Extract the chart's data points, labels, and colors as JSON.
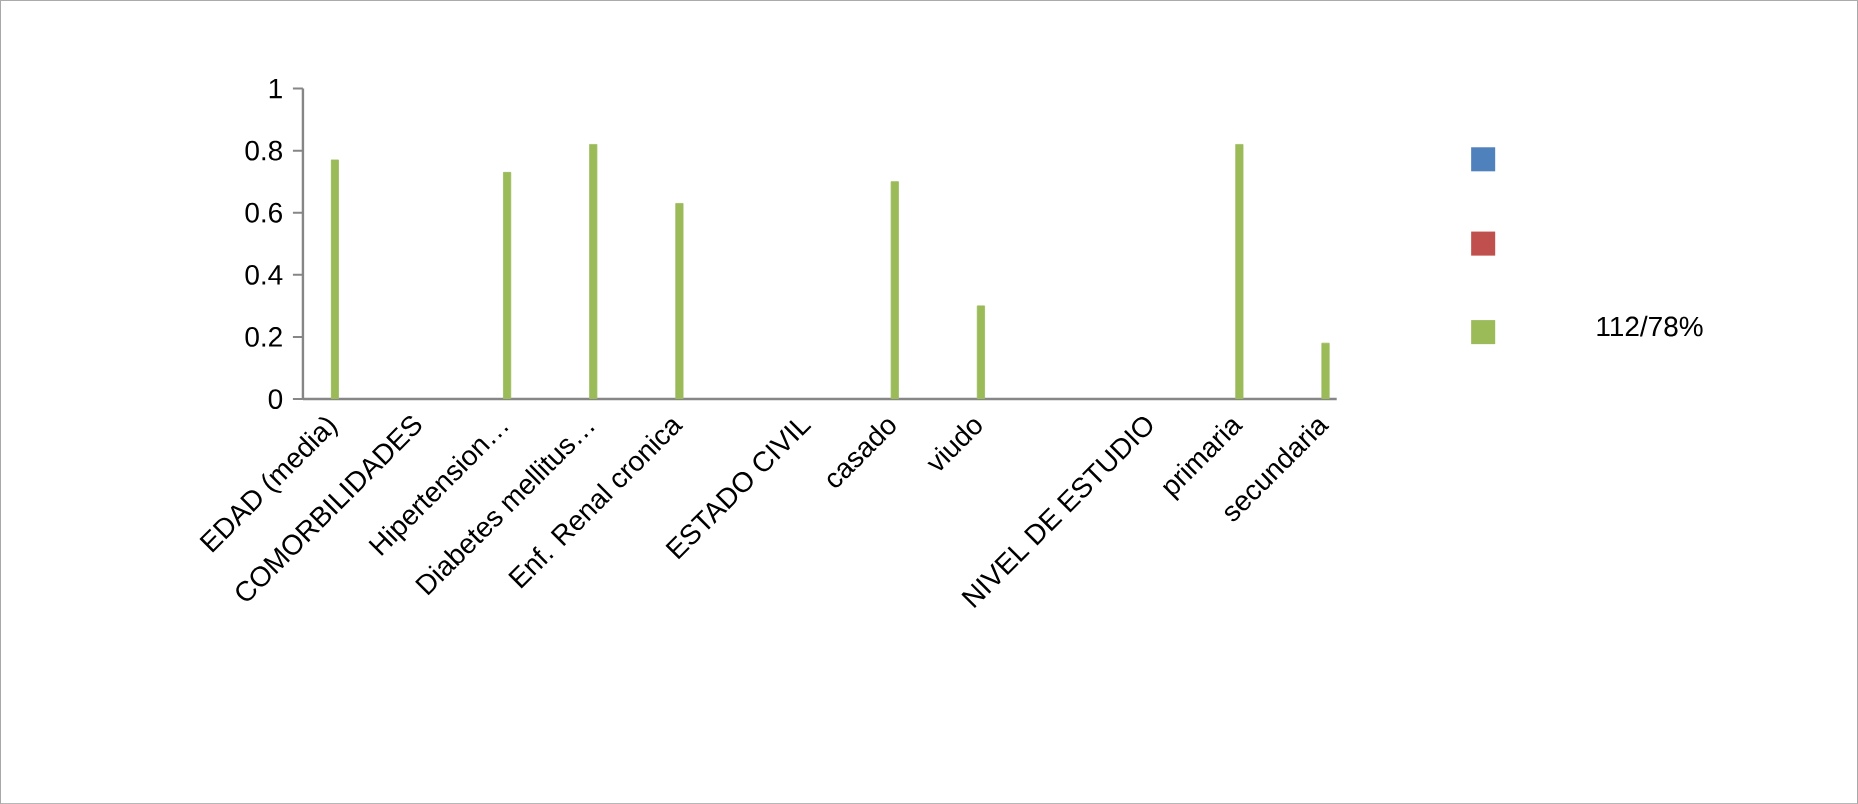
{
  "chart_data": {
    "type": "bar",
    "categories": [
      "EDAD (media)",
      null,
      "COMORBILIDADES",
      null,
      "Hipertension…",
      null,
      "Diabetes mellitus…",
      null,
      "Enf. Renal cronica",
      null,
      null,
      "ESTADO CIVIL",
      null,
      "casado",
      null,
      "viudo",
      null,
      null,
      null,
      "NIVEL DE ESTUDIO",
      null,
      "primaria",
      null,
      "secundaria"
    ],
    "series": [
      {
        "color": "#4f81bd",
        "values": [
          null,
          null,
          null,
          null,
          null,
          null,
          null,
          null,
          null,
          null,
          null,
          null,
          null,
          null,
          null,
          null,
          null,
          null,
          null,
          null,
          null,
          null,
          null,
          null
        ]
      },
      {
        "color": "#c0504d",
        "values": [
          null,
          null,
          null,
          null,
          null,
          null,
          null,
          null,
          null,
          null,
          null,
          null,
          null,
          null,
          null,
          null,
          null,
          null,
          null,
          null,
          null,
          null,
          null,
          null
        ]
      },
      {
        "name": "112/78%",
        "color": "#9bbb59",
        "values": [
          0.77,
          null,
          null,
          null,
          0.73,
          null,
          0.82,
          null,
          0.63,
          null,
          null,
          null,
          null,
          0.7,
          null,
          0.3,
          null,
          null,
          null,
          null,
          null,
          0.82,
          null,
          0.18
        ]
      }
    ],
    "ylim": [
      0,
      1
    ],
    "yticks": [
      0,
      0.2,
      0.4,
      0.6,
      0.8,
      1
    ],
    "grid": false,
    "legend": "right"
  }
}
